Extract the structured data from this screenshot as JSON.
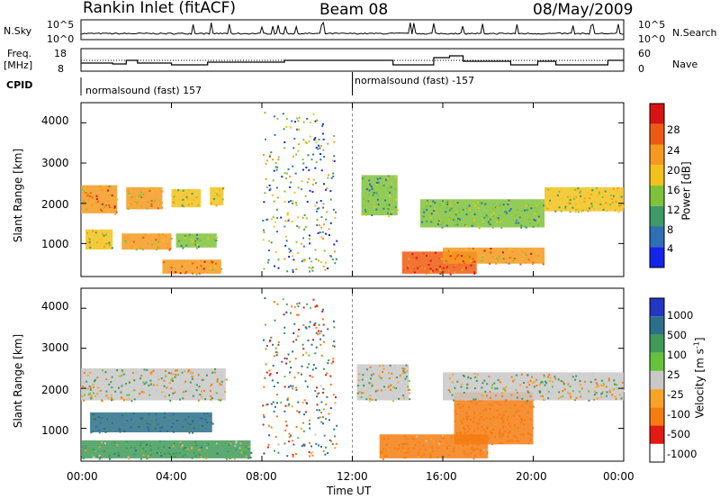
{
  "header": {
    "title": "Rankin Inlet (fitACF)",
    "beam": "Beam 08",
    "date": "08/May/2009"
  },
  "status_panels": {
    "nsky_label": "N.Sky",
    "nsearch_label": "N.Search",
    "freq_label_1": "Freq.",
    "freq_label_2": "[MHz]",
    "nave_label": "Nave",
    "cpid_label": "CPID",
    "nsky_ticks": [
      "10^5",
      "10^0"
    ],
    "nsearch_ticks": [
      "10^5",
      "10^0"
    ],
    "freq_ticks": [
      "18",
      "8"
    ],
    "nave_ticks": [
      "60",
      "0"
    ],
    "cpid_segments": [
      {
        "label": "normalsound (fast) 157",
        "start_hour": 0
      },
      {
        "label": "normalsound (fast) -157",
        "start_hour": 12
      }
    ]
  },
  "time_axis": {
    "label": "Time UT",
    "ticks": [
      "00:00",
      "04:00",
      "08:00",
      "12:00",
      "16:00",
      "20:00",
      "00:00"
    ]
  },
  "range_axis": {
    "label": "Slant Range [km]",
    "ticks": [
      "1000",
      "2000",
      "3000",
      "4000"
    ]
  },
  "power_colorbar": {
    "label": "Power [dB]",
    "ticks": [
      "4",
      "8",
      "12",
      "16",
      "20",
      "24",
      "28"
    ],
    "colors": [
      "#1424e8",
      "#2f6fb3",
      "#3e9a66",
      "#7fc23a",
      "#f2c21b",
      "#f59a1e",
      "#ef5a12",
      "#d81313"
    ]
  },
  "velocity_colorbar": {
    "label_main": "Velocity",
    "label_unit": "[m s",
    "label_sup": "-1",
    "label_close": "]",
    "ticks": [
      "1000",
      "500",
      "100",
      "25",
      "-25",
      "-100",
      "-500",
      "-1000"
    ],
    "colors": [
      "#2436c4",
      "#2c6f8a",
      "#3f9a59",
      "#66c23a",
      "#c8c8c8",
      "#f6a327",
      "#f57c10",
      "#e21a14"
    ]
  },
  "chart_data": {
    "type": "heatmap",
    "panels": [
      "Power [dB]",
      "Velocity [m s-1]"
    ],
    "x": {
      "unit": "hours UT",
      "range": [
        0,
        24
      ]
    },
    "y": {
      "unit": "km",
      "range": [
        180,
        4500
      ]
    },
    "power_regions": [
      {
        "t0": 0.0,
        "t1": 1.6,
        "r0": 1750,
        "r1": 2450,
        "value": 22
      },
      {
        "t0": 2.0,
        "t1": 3.6,
        "r0": 1850,
        "r1": 2400,
        "value": 20
      },
      {
        "t0": 4.0,
        "t1": 5.3,
        "r0": 1900,
        "r1": 2350,
        "value": 16
      },
      {
        "t0": 5.7,
        "t1": 6.3,
        "r0": 1950,
        "r1": 2400,
        "value": 18
      },
      {
        "t0": 0.2,
        "t1": 1.4,
        "r0": 850,
        "r1": 1350,
        "value": 16
      },
      {
        "t0": 1.8,
        "t1": 4.0,
        "r0": 850,
        "r1": 1250,
        "value": 20
      },
      {
        "t0": 4.2,
        "t1": 6.0,
        "r0": 900,
        "r1": 1250,
        "value": 12
      },
      {
        "t0": 3.6,
        "t1": 6.2,
        "r0": 250,
        "r1": 600,
        "value": 22
      },
      {
        "t0": 12.4,
        "t1": 14.0,
        "r0": 1700,
        "r1": 2700,
        "value": 12
      },
      {
        "t0": 14.2,
        "t1": 17.5,
        "r0": 250,
        "r1": 800,
        "value": 24
      },
      {
        "t0": 16.0,
        "t1": 20.5,
        "r0": 500,
        "r1": 900,
        "value": 22
      },
      {
        "t0": 15.0,
        "t1": 20.5,
        "r0": 1400,
        "r1": 2100,
        "value": 12
      },
      {
        "t0": 20.5,
        "t1": 24.0,
        "r0": 1800,
        "r1": 2400,
        "value": 16
      }
    ],
    "velocity_regions": [
      {
        "t0": 0.0,
        "t1": 6.4,
        "r0": 1700,
        "r1": 2500,
        "value": 0
      },
      {
        "t0": 0.4,
        "t1": 5.8,
        "r0": 900,
        "r1": 1400,
        "value": 300
      },
      {
        "t0": 0.0,
        "t1": 7.5,
        "r0": 250,
        "r1": 700,
        "value": 100
      },
      {
        "t0": 12.2,
        "t1": 14.5,
        "r0": 1700,
        "r1": 2600,
        "value": 0
      },
      {
        "t0": 13.2,
        "t1": 18.0,
        "r0": 250,
        "r1": 850,
        "value": -200
      },
      {
        "t0": 16.5,
        "t1": 20.0,
        "r0": 600,
        "r1": 1900,
        "value": -300
      },
      {
        "t0": 16.0,
        "t1": 24.0,
        "r0": 1700,
        "r1": 2400,
        "value": 0
      }
    ]
  }
}
